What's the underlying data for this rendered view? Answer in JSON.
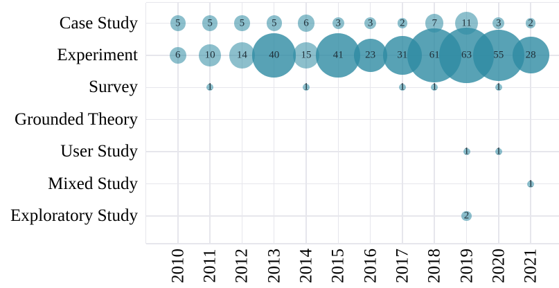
{
  "chart_data": {
    "type": "bubble",
    "title": "",
    "xlabel": "",
    "ylabel": "",
    "x_categories": [
      "2010",
      "2011",
      "2012",
      "2013",
      "2014",
      "2015",
      "2016",
      "2017",
      "2018",
      "2019",
      "2020",
      "2021"
    ],
    "y_categories": [
      "Case Study",
      "Experiment",
      "Survey",
      "Grounded Theory",
      "User Study",
      "Mixed Study",
      "Exploratory Study"
    ],
    "series": [
      {
        "name": "Case Study",
        "values": [
          5,
          5,
          5,
          5,
          6,
          3,
          3,
          2,
          7,
          11,
          3,
          2
        ]
      },
      {
        "name": "Experiment",
        "values": [
          6,
          10,
          14,
          40,
          15,
          41,
          23,
          31,
          61,
          63,
          55,
          28
        ]
      },
      {
        "name": "Survey",
        "values": [
          null,
          1,
          null,
          null,
          1,
          null,
          null,
          1,
          1,
          null,
          1,
          null
        ]
      },
      {
        "name": "Grounded Theory",
        "values": [
          null,
          null,
          null,
          null,
          null,
          null,
          null,
          null,
          null,
          null,
          null,
          null
        ]
      },
      {
        "name": "User Study",
        "values": [
          null,
          null,
          null,
          null,
          null,
          null,
          null,
          null,
          null,
          1,
          1,
          null
        ]
      },
      {
        "name": "Mixed Study",
        "values": [
          null,
          null,
          null,
          null,
          null,
          null,
          null,
          null,
          null,
          null,
          null,
          1
        ]
      },
      {
        "name": "Exploratory Study",
        "values": [
          null,
          null,
          null,
          null,
          null,
          null,
          null,
          null,
          null,
          2,
          null,
          null
        ]
      }
    ],
    "size_rule": "radius_px = 5 * sqrt(value)",
    "grid": true,
    "legend": false,
    "style": {
      "bubble_color": "#2E8BA2",
      "bubble_opacity": 0.55,
      "bubble_double_layer_min_value": 20,
      "gridline_color": "#E6E6EC",
      "axis_text_color": "#000000",
      "value_text_color": "#1E2D36",
      "background": "#FFFFFF"
    }
  }
}
